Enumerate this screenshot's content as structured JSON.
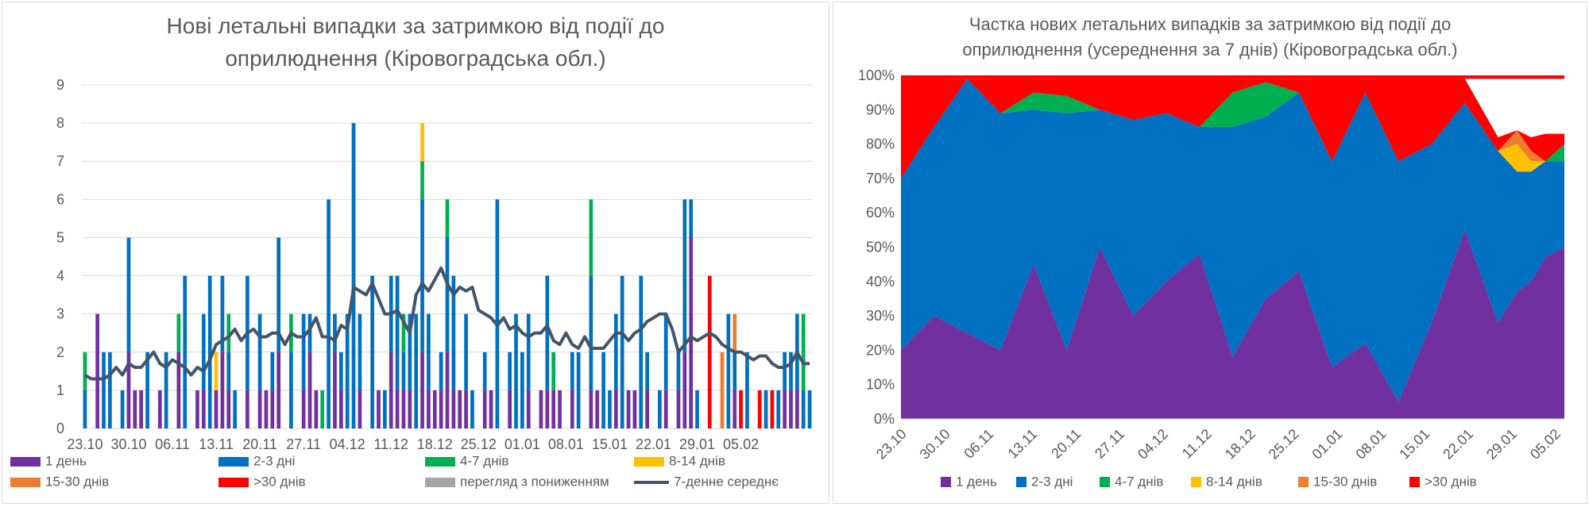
{
  "colors": {
    "d1": "#7030a0",
    "d23": "#0070c0",
    "d47": "#00b050",
    "d814": "#ffc000",
    "d1530": "#ed7d31",
    "d30": "#ff0000",
    "down": "#a5a5a5",
    "avg": "#44546a",
    "grid": "#d9d9d9"
  },
  "chart_data": [
    {
      "type": "bar",
      "title_lines": [
        "Нові летальні випадки за затримкою від події до",
        "оприлюднення (Кіровоградська обл.)"
      ],
      "ylim": [
        0,
        9
      ],
      "yticks": [
        "0",
        "1",
        "2",
        "3",
        "4",
        "5",
        "6",
        "7",
        "8",
        "9"
      ],
      "xticks": [
        "23.10",
        "30.10",
        "06.11",
        "13.11",
        "20.11",
        "27.11",
        "04.12",
        "11.12",
        "18.12",
        "25.12",
        "01.01",
        "08.01",
        "15.01",
        "22.01",
        "29.01",
        "05.02"
      ],
      "series_names": [
        "1 день",
        "2-3 дні",
        "4-7 днів",
        "8-14 днів",
        "15-30 днів",
        ">30 днів",
        "перегляд з пониженням",
        "7-денне середнє"
      ],
      "days": [
        [
          0,
          1,
          1,
          0,
          0,
          0
        ],
        [
          0,
          0,
          0,
          0,
          0,
          0
        ],
        [
          3,
          0,
          0,
          0,
          0,
          0
        ],
        [
          0,
          2,
          0,
          0,
          0,
          0
        ],
        [
          0,
          2,
          0,
          0,
          0,
          0
        ],
        [
          0,
          0,
          0,
          0,
          0,
          0
        ],
        [
          0,
          1,
          0,
          0,
          0,
          0
        ],
        [
          2,
          3,
          0,
          0,
          0,
          0
        ],
        [
          1,
          0,
          0,
          0,
          0,
          0
        ],
        [
          1,
          0,
          0,
          0,
          0,
          0
        ],
        [
          0,
          2,
          0,
          0,
          0,
          0
        ],
        [
          0,
          0,
          0,
          0,
          0,
          0
        ],
        [
          1,
          0,
          0,
          0,
          0,
          0
        ],
        [
          0,
          2,
          0,
          0,
          0,
          0
        ],
        [
          0,
          0,
          0,
          0,
          0,
          0
        ],
        [
          2,
          0,
          1,
          0,
          0,
          0
        ],
        [
          0,
          4,
          0,
          0,
          0,
          0
        ],
        [
          0,
          0,
          0,
          0,
          0,
          0
        ],
        [
          1,
          0,
          0,
          0,
          0,
          0
        ],
        [
          1,
          2,
          0,
          0,
          0,
          0
        ],
        [
          0,
          4,
          0,
          0,
          0,
          0
        ],
        [
          1,
          0,
          0,
          1,
          0,
          0
        ],
        [
          2,
          2,
          0,
          0,
          0,
          0
        ],
        [
          1,
          1,
          1,
          0,
          0,
          0
        ],
        [
          0,
          1,
          0,
          0,
          0,
          0
        ],
        [
          0,
          0,
          0,
          0,
          0,
          0
        ],
        [
          1,
          3,
          0,
          0,
          0,
          0
        ],
        [
          0,
          0,
          0,
          0,
          0,
          0
        ],
        [
          1,
          2,
          0,
          0,
          0,
          0
        ],
        [
          1,
          0,
          0,
          0,
          0,
          0
        ],
        [
          1,
          1,
          0,
          0,
          0,
          0
        ],
        [
          2,
          3,
          0,
          0,
          0,
          0
        ],
        [
          0,
          0,
          0,
          0,
          0,
          0
        ],
        [
          0,
          2,
          1,
          0,
          0,
          0
        ],
        [
          0,
          0,
          0,
          0,
          0,
          0
        ],
        [
          1,
          2,
          0,
          0,
          0,
          0
        ],
        [
          2,
          1,
          0,
          0,
          0,
          0
        ],
        [
          1,
          0,
          0,
          0,
          0,
          0
        ],
        [
          0,
          0,
          1,
          0,
          0,
          0
        ],
        [
          0,
          6,
          0,
          0,
          0,
          0
        ],
        [
          2,
          1,
          0,
          0,
          0,
          0
        ],
        [
          1,
          1,
          0,
          0,
          0,
          0
        ],
        [
          0,
          3,
          0,
          0,
          0,
          0
        ],
        [
          0,
          8,
          0,
          0,
          0,
          0
        ],
        [
          1,
          2,
          0,
          0,
          0,
          0
        ],
        [
          0,
          0,
          0,
          0,
          0,
          0
        ],
        [
          0,
          4,
          0,
          0,
          0,
          0
        ],
        [
          1,
          0,
          0,
          0,
          0,
          0
        ],
        [
          0,
          1,
          0,
          0,
          0,
          0
        ],
        [
          2,
          2,
          0,
          0,
          0,
          0
        ],
        [
          1,
          3,
          0,
          0,
          0,
          0
        ],
        [
          1,
          1,
          1,
          0,
          0,
          0
        ],
        [
          1,
          2,
          0,
          0,
          0,
          0
        ],
        [
          0,
          3,
          0,
          0,
          0,
          0
        ],
        [
          2,
          4,
          1,
          1,
          0,
          0
        ],
        [
          1,
          2,
          0,
          0,
          0,
          0
        ],
        [
          1,
          0,
          0,
          0,
          0,
          0
        ],
        [
          1,
          1,
          0,
          0,
          0,
          0
        ],
        [
          2,
          3,
          1,
          0,
          0,
          0
        ],
        [
          1,
          3,
          0,
          0,
          0,
          0
        ],
        [
          1,
          0,
          0,
          0,
          0,
          0
        ],
        [
          1,
          2,
          0,
          0,
          0,
          0
        ],
        [
          0,
          1,
          0,
          0,
          0,
          0
        ],
        [
          0,
          0,
          0,
          0,
          0,
          0
        ],
        [
          1,
          1,
          0,
          0,
          0,
          0
        ],
        [
          1,
          0,
          0,
          0,
          0,
          0
        ],
        [
          0,
          6,
          0,
          0,
          0,
          0
        ],
        [
          0,
          0,
          0,
          0,
          0,
          0
        ],
        [
          1,
          1,
          0,
          0,
          0,
          0
        ],
        [
          0,
          3,
          0,
          0,
          0,
          0
        ],
        [
          0,
          2,
          0,
          0,
          0,
          0
        ],
        [
          1,
          2,
          0,
          0,
          0,
          0
        ],
        [
          0,
          0,
          0,
          0,
          0,
          0
        ],
        [
          1,
          0,
          0,
          0,
          0,
          0
        ],
        [
          1,
          3,
          0,
          0,
          0,
          0
        ],
        [
          1,
          0,
          1,
          0,
          0,
          0
        ],
        [
          1,
          0,
          0,
          0,
          0,
          0
        ],
        [
          0,
          0,
          0,
          0,
          0,
          0
        ],
        [
          1,
          1,
          0,
          0,
          0,
          0
        ],
        [
          0,
          2,
          0,
          0,
          0,
          0
        ],
        [
          0,
          0,
          0,
          0,
          0,
          0
        ],
        [
          1,
          3,
          2,
          0,
          0,
          0
        ],
        [
          1,
          0,
          0,
          0,
          0,
          0
        ],
        [
          0,
          2,
          0,
          0,
          0,
          0
        ],
        [
          0,
          1,
          0,
          0,
          0,
          0
        ],
        [
          1,
          2,
          0,
          0,
          0,
          0
        ],
        [
          0,
          4,
          0,
          0,
          0,
          0
        ],
        [
          1,
          0,
          0,
          0,
          0,
          0
        ],
        [
          1,
          0,
          0,
          0,
          0,
          0
        ],
        [
          0,
          4,
          0,
          0,
          0,
          0
        ],
        [
          1,
          1,
          0,
          0,
          0,
          0
        ],
        [
          0,
          0,
          0,
          0,
          0,
          0
        ],
        [
          0,
          1,
          0,
          0,
          0,
          0
        ],
        [
          1,
          2,
          0,
          0,
          0,
          0
        ],
        [
          0,
          0,
          0,
          0,
          0,
          0
        ],
        [
          1,
          1,
          0,
          0,
          0,
          0
        ],
        [
          2,
          4,
          0,
          0,
          0,
          0
        ],
        [
          5,
          1,
          0,
          0,
          0,
          0
        ],
        [
          0,
          1,
          0,
          0,
          0,
          0
        ],
        [
          0,
          0,
          0,
          0,
          0,
          0
        ],
        [
          0,
          0,
          0,
          0,
          0,
          4
        ],
        [
          0,
          0,
          0,
          0,
          0,
          0
        ],
        [
          0,
          0,
          0,
          0,
          2,
          0
        ],
        [
          0,
          3,
          0,
          0,
          0,
          0
        ],
        [
          1,
          1,
          0,
          0,
          1,
          0
        ],
        [
          0,
          0,
          0,
          0,
          0,
          1
        ],
        [
          0,
          2,
          0,
          0,
          0,
          0
        ],
        [
          0,
          0,
          0,
          0,
          0,
          0
        ],
        [
          0,
          0,
          0,
          0,
          0,
          1
        ],
        [
          0,
          1,
          0,
          0,
          0,
          0
        ],
        [
          0,
          0,
          0,
          0,
          0,
          1
        ],
        [
          0,
          1,
          0,
          0,
          0,
          0
        ],
        [
          1,
          1,
          0,
          0,
          0,
          0
        ],
        [
          1,
          1,
          0,
          0,
          0,
          0
        ],
        [
          1,
          2,
          0,
          0,
          0,
          0
        ],
        [
          0,
          1,
          2,
          0,
          0,
          0
        ],
        [
          0,
          1,
          0,
          0,
          0,
          0
        ]
      ],
      "avg": [
        1.4,
        1.3,
        1.3,
        1.3,
        1.4,
        1.6,
        1.4,
        1.7,
        1.6,
        1.6,
        1.8,
        2.0,
        1.7,
        1.6,
        1.8,
        1.7,
        1.6,
        1.4,
        1.6,
        1.5,
        1.8,
        2.2,
        2.3,
        2.4,
        2.6,
        2.3,
        2.5,
        2.6,
        2.4,
        2.4,
        2.5,
        2.5,
        2.2,
        2.5,
        2.4,
        2.4,
        2.6,
        2.9,
        2.4,
        2.4,
        2.3,
        2.7,
        2.6,
        3.7,
        3.6,
        3.5,
        3.8,
        3.4,
        3.0,
        3.0,
        3.1,
        2.8,
        2.5,
        3.5,
        3.8,
        3.6,
        3.9,
        4.2,
        3.8,
        3.5,
        3.7,
        3.6,
        3.7,
        3.1,
        3.0,
        2.9,
        2.7,
        2.9,
        2.6,
        2.7,
        2.5,
        2.4,
        2.5,
        2.5,
        2.7,
        2.3,
        2.2,
        2.5,
        2.2,
        2.1,
        2.4,
        2.1,
        2.1,
        2.1,
        2.3,
        2.5,
        2.5,
        2.3,
        2.5,
        2.6,
        2.8,
        2.9,
        3.0,
        3.0,
        2.6,
        2.0,
        2.2,
        2.4,
        2.3,
        2.4,
        2.5,
        2.4,
        2.2,
        2.1,
        2.0,
        2.0,
        1.9,
        1.8,
        1.9,
        1.9,
        1.7,
        1.6,
        1.6,
        1.7,
        2.0,
        1.7,
        1.7
      ]
    },
    {
      "type": "area",
      "stacked_percent": true,
      "title_lines": [
        "Частка нових летальних випадків за затримкою від події до",
        "оприлюднення (усереднення за 7 днів) (Кіровоградська обл.)"
      ],
      "ylim": [
        0,
        100
      ],
      "yticks": [
        "0%",
        "10%",
        "20%",
        "30%",
        "40%",
        "50%",
        "60%",
        "70%",
        "80%",
        "90%",
        "100%"
      ],
      "xticks": [
        "23.10",
        "30.10",
        "06.11",
        "13.11",
        "20.11",
        "27.11",
        "04.12",
        "11.12",
        "18.12",
        "25.12",
        "01.01",
        "08.01",
        "15.01",
        "22.01",
        "29.01",
        "05.02"
      ],
      "series_names": [
        "1 день",
        "2-3 дні",
        "4-7 днів",
        "8-14 днів",
        "15-30 днів",
        ">30 днів"
      ],
      "keys": [
        [
          0,
          20,
          70,
          70,
          70,
          70,
          99
        ],
        [
          7,
          30,
          85,
          85,
          85,
          85,
          99
        ],
        [
          14,
          25,
          99,
          99,
          99,
          99,
          99
        ],
        [
          21,
          20,
          89,
          89,
          89,
          89,
          99
        ],
        [
          28,
          45,
          90,
          95,
          95,
          95,
          99
        ],
        [
          35,
          20,
          89,
          94,
          94,
          94,
          99
        ],
        [
          42,
          50,
          90,
          90,
          90,
          90,
          99
        ],
        [
          49,
          30,
          87,
          87,
          87,
          87,
          99
        ],
        [
          56,
          40,
          89,
          89,
          89,
          89,
          99
        ],
        [
          63,
          48,
          85,
          85,
          85,
          85,
          99
        ],
        [
          70,
          18,
          85,
          95,
          95,
          95,
          99
        ],
        [
          77,
          35,
          88,
          98,
          98,
          98,
          99
        ],
        [
          84,
          43,
          95,
          95,
          95,
          95,
          99
        ],
        [
          91,
          15,
          75,
          75,
          75,
          75,
          99
        ],
        [
          98,
          22,
          95,
          95,
          95,
          95,
          99
        ],
        [
          105,
          5,
          75,
          75,
          75,
          75,
          99
        ],
        [
          112,
          28,
          80,
          80,
          80,
          80,
          99
        ],
        [
          119,
          55,
          92,
          92,
          92,
          92,
          99
        ],
        [
          126,
          28,
          78,
          78,
          78,
          78,
          82
        ],
        [
          130,
          37,
          72,
          72,
          80,
          84,
          84
        ],
        [
          133,
          40,
          72,
          72,
          75,
          78,
          82
        ],
        [
          136,
          47,
          75,
          75,
          75,
          75,
          83
        ],
        [
          140,
          50,
          75,
          80,
          80,
          80,
          83
        ]
      ]
    }
  ]
}
